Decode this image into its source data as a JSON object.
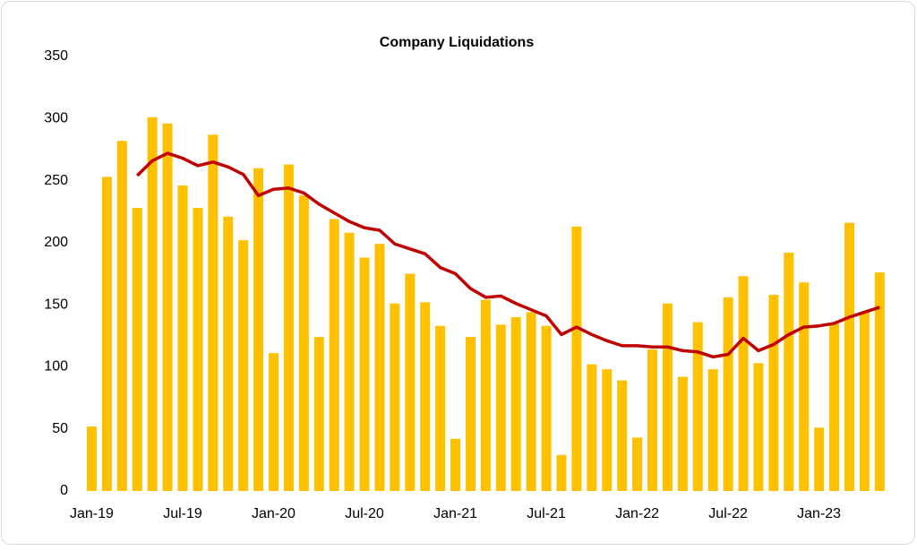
{
  "chart_data": {
    "type": "bar",
    "title": "Company Liquidations",
    "categories": [
      "Jan-19",
      null,
      null,
      null,
      null,
      null,
      "Jul-19",
      null,
      null,
      null,
      null,
      null,
      "Jan-20",
      null,
      null,
      null,
      null,
      null,
      "Jul-20",
      null,
      null,
      null,
      null,
      null,
      "Jan-21",
      null,
      null,
      null,
      null,
      null,
      "Jul-21",
      null,
      null,
      null,
      null,
      null,
      "Jan-22",
      null,
      null,
      null,
      null,
      null,
      "Jul-22",
      null,
      null,
      null,
      null,
      null,
      "Jan-23",
      null,
      null,
      null,
      null
    ],
    "series": [
      {
        "type": "bar",
        "color": "#ffc000",
        "values": [
          52,
          253,
          282,
          228,
          301,
          296,
          246,
          228,
          287,
          221,
          202,
          260,
          111,
          263,
          238,
          124,
          219,
          208,
          188,
          199,
          151,
          175,
          152,
          133,
          42,
          124,
          154,
          134,
          140,
          144,
          133,
          29,
          213,
          102,
          98,
          89,
          43,
          114,
          151,
          92,
          136,
          98,
          156,
          173,
          103,
          158,
          192,
          168,
          51,
          135,
          216,
          144,
          176
        ]
      },
      {
        "type": "line",
        "color": "#c00000",
        "values": [
          null,
          null,
          null,
          254,
          266,
          272,
          268,
          262,
          265,
          261,
          255,
          238,
          243,
          244,
          240,
          231,
          224,
          217,
          212,
          210,
          199,
          195,
          191,
          180,
          175,
          163,
          156,
          157,
          151,
          146,
          141,
          126,
          132,
          126,
          121,
          117,
          117,
          116,
          116,
          113,
          112,
          108,
          110,
          123,
          113,
          118,
          126,
          132,
          133,
          135,
          140,
          144,
          148
        ]
      }
    ],
    "ylim": [
      0,
      350
    ],
    "yticks": [
      0,
      50,
      100,
      150,
      200,
      250,
      300,
      350
    ]
  }
}
